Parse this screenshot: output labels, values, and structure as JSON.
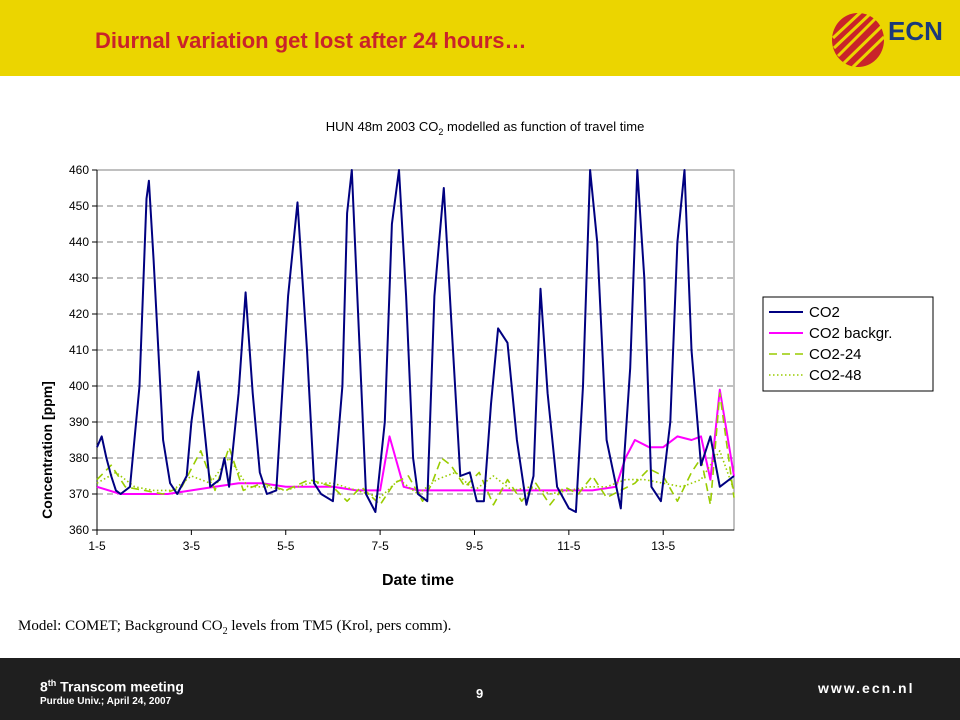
{
  "slide": {
    "title": "Diurnal variation get lost after 24 hours…",
    "logo_text": "ECN",
    "caption_pre": "Model: COMET; Background CO",
    "caption_sub": "2",
    "caption_post": " levels from TM5 (Krol, pers comm).",
    "colors": {
      "header": "#ebd500",
      "title": "#c9232a",
      "footer": "#1f1f1f",
      "logo": "#c9232a"
    }
  },
  "footer": {
    "meeting_pre": "8",
    "meeting_sup": "th",
    "meeting_post": " Transcom meeting",
    "place_date": "Purdue Univ.; April 24, 2007",
    "page_number": "9",
    "url": "www.ecn.nl"
  },
  "chart_data": {
    "type": "line",
    "title_pre": "HUN 48m 2003 CO",
    "title_sub": "2",
    "title_post": " modelled as function of travel time",
    "xlabel": "Date time",
    "ylabel": "Concentration [ppm]",
    "ylim": [
      360,
      460
    ],
    "yticks": [
      360,
      370,
      380,
      390,
      400,
      410,
      420,
      430,
      440,
      450,
      460
    ],
    "x_start_label": "1-5",
    "xlim_days": [
      1,
      14.5
    ],
    "xticks": [
      "1-5",
      "3-5",
      "5-5",
      "7-5",
      "9-5",
      "11-5",
      "13-5"
    ],
    "grid": "horizontal dashed",
    "legend_position": "right",
    "series": [
      {
        "name": "CO2",
        "color": "#000080",
        "style": "solid",
        "x": [
          1.0,
          1.1,
          1.2,
          1.3,
          1.4,
          1.5,
          1.7,
          1.9,
          2.05,
          2.1,
          2.2,
          2.4,
          2.55,
          2.7,
          2.9,
          3.0,
          3.15,
          3.3,
          3.4,
          3.6,
          3.7,
          3.8,
          4.0,
          4.15,
          4.3,
          4.45,
          4.6,
          4.8,
          5.05,
          5.25,
          5.45,
          5.6,
          5.75,
          6.0,
          6.2,
          6.3,
          6.4,
          6.55,
          6.7,
          6.9,
          7.1,
          7.25,
          7.4,
          7.55,
          7.7,
          7.8,
          8.0,
          8.15,
          8.35,
          8.5,
          8.7,
          8.9,
          9.05,
          9.2,
          9.35,
          9.5,
          9.7,
          9.9,
          10.1,
          10.25,
          10.4,
          10.55,
          10.75,
          11.0,
          11.15,
          11.3,
          11.45,
          11.6,
          11.8,
          12.1,
          12.3,
          12.45,
          12.6,
          12.75,
          12.95,
          13.15,
          13.3,
          13.45,
          13.6,
          13.8,
          14.0,
          14.2,
          14.5
        ],
        "y": [
          383,
          386,
          380,
          375,
          371,
          370,
          372,
          400,
          452,
          457,
          435,
          385,
          373,
          370,
          375,
          390,
          404,
          385,
          372,
          374,
          380,
          372,
          398,
          426,
          398,
          376,
          370,
          371,
          425,
          451,
          410,
          373,
          370,
          368,
          400,
          448,
          462,
          415,
          370,
          365,
          390,
          445,
          461,
          425,
          380,
          370,
          368,
          425,
          455,
          420,
          375,
          376,
          368,
          368,
          395,
          416,
          412,
          385,
          367,
          375,
          427,
          398,
          372,
          366,
          365,
          400,
          463,
          440,
          385,
          366,
          405,
          462,
          430,
          372,
          368,
          390,
          440,
          461,
          410,
          378,
          386,
          372,
          375
        ]
      },
      {
        "name": "CO2 backgr.",
        "color": "#ff00ff",
        "style": "solid",
        "x": [
          1.0,
          1.5,
          2.0,
          2.5,
          3.0,
          3.5,
          4.0,
          4.5,
          5.0,
          5.5,
          6.0,
          6.5,
          7.0,
          7.2,
          7.5,
          7.8,
          8.0,
          8.5,
          9.0,
          9.5,
          10.0,
          10.5,
          11.0,
          11.5,
          12.0,
          12.2,
          12.4,
          12.7,
          13.0,
          13.3,
          13.6,
          13.8,
          14.0,
          14.2,
          14.5
        ],
        "y": [
          372,
          370,
          370,
          370,
          371,
          372,
          373,
          373,
          372,
          372,
          372,
          371,
          371,
          386,
          372,
          371,
          371,
          371,
          371,
          371,
          371,
          371,
          371,
          371,
          372,
          380,
          385,
          383,
          383,
          386,
          385,
          386,
          374,
          399,
          375
        ]
      },
      {
        "name": "CO2-24",
        "color": "#99cc00",
        "style": "dashed",
        "x": [
          1.0,
          1.3,
          1.6,
          2.0,
          2.4,
          2.8,
          3.2,
          3.5,
          3.8,
          4.1,
          4.5,
          5.0,
          5.5,
          6.0,
          6.3,
          6.6,
          7.0,
          7.3,
          7.6,
          7.9,
          8.1,
          8.3,
          8.5,
          8.8,
          9.1,
          9.4,
          9.7,
          10.0,
          10.3,
          10.6,
          10.9,
          11.2,
          11.5,
          11.8,
          12.1,
          12.4,
          12.7,
          13.0,
          13.3,
          13.6,
          13.8,
          14.0,
          14.2,
          14.5
        ],
        "y": [
          374,
          378,
          372,
          371,
          370,
          372,
          382,
          371,
          383,
          371,
          373,
          371,
          374,
          372,
          368,
          372,
          367,
          373,
          375,
          368,
          373,
          380,
          378,
          372,
          376,
          367,
          374,
          368,
          373,
          367,
          372,
          370,
          375,
          369,
          371,
          373,
          377,
          375,
          368,
          376,
          380,
          367,
          398,
          369
        ]
      },
      {
        "name": "CO2-48",
        "color": "#99cc00",
        "style": "dotted",
        "x": [
          1.0,
          1.4,
          1.8,
          2.2,
          2.6,
          3.0,
          3.4,
          3.8,
          4.2,
          4.6,
          5.0,
          5.5,
          6.0,
          6.5,
          7.0,
          7.4,
          7.8,
          8.2,
          8.6,
          9.0,
          9.4,
          9.8,
          10.2,
          10.6,
          11.0,
          11.4,
          11.8,
          12.2,
          12.6,
          13.0,
          13.4,
          13.8,
          14.2,
          14.5
        ],
        "y": [
          373,
          376,
          372,
          371,
          371,
          375,
          373,
          380,
          372,
          372,
          371,
          373,
          373,
          371,
          369,
          374,
          370,
          374,
          376,
          371,
          375,
          371,
          372,
          370,
          371,
          372,
          372,
          374,
          374,
          373,
          372,
          374,
          382,
          371
        ]
      }
    ]
  }
}
